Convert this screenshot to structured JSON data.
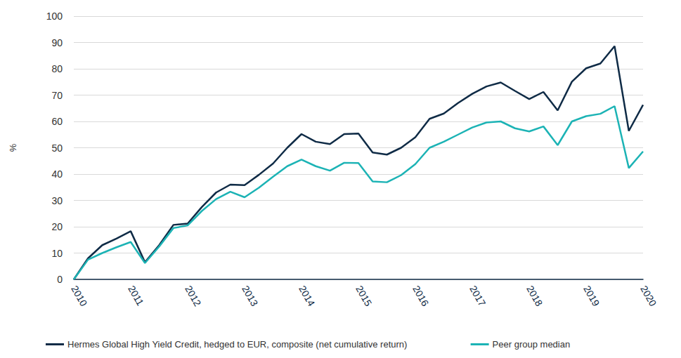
{
  "chart_data": {
    "type": "line",
    "y_label": "%",
    "categories": [
      "2010",
      null,
      null,
      null,
      "2011",
      null,
      null,
      null,
      "2012",
      null,
      null,
      null,
      "2013",
      null,
      null,
      null,
      "2014",
      null,
      null,
      null,
      "2015",
      null,
      null,
      null,
      "2016",
      null,
      null,
      null,
      "2017",
      null,
      null,
      null,
      "2018",
      null,
      null,
      null,
      "2019",
      null,
      null,
      null,
      "2020"
    ],
    "series": [
      {
        "name": "Hermes Global High Yield Credit, hedged to EUR, composite (net cumulative return)",
        "color": "#0f2b46",
        "values": [
          0,
          8,
          13,
          15.5,
          18.3,
          6.5,
          13,
          20.7,
          21.2,
          27.5,
          33,
          36,
          35.8,
          39.7,
          44,
          50,
          55.2,
          52.3,
          51.4,
          55.2,
          55.4,
          48.2,
          47.4,
          50,
          54,
          61,
          63,
          67,
          70.5,
          73.3,
          74.8,
          71.6,
          68.5,
          71.2,
          64.2,
          75.1,
          80.2,
          82,
          88.6,
          56.4,
          66.3
        ]
      },
      {
        "name": "Peer group median",
        "color": "#1cb3b5",
        "values": [
          0,
          7.5,
          10,
          12.2,
          14.2,
          6.2,
          12.5,
          19.5,
          20.5,
          26,
          30.5,
          33.3,
          31.2,
          34.8,
          39,
          43,
          45.5,
          43,
          41.3,
          44.3,
          44.2,
          37.2,
          36.9,
          39.6,
          43.8,
          50,
          52.3,
          55,
          57.7,
          59.6,
          60,
          57.4,
          56.2,
          58.1,
          51,
          60,
          62,
          62.9,
          65.8,
          42.3,
          48.6
        ]
      }
    ],
    "ylim": [
      0,
      100
    ],
    "yticks": [
      0,
      10,
      20,
      30,
      40,
      50,
      60,
      70,
      80,
      90,
      100
    ],
    "grid": true,
    "legend": "bottom"
  }
}
